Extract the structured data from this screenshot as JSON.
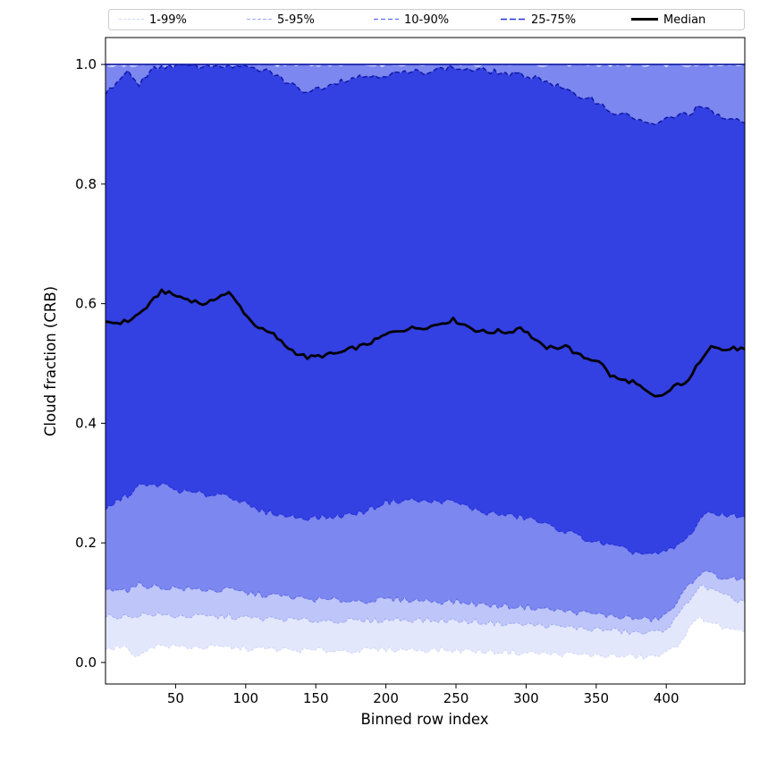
{
  "figure": {
    "background": "#ffffff"
  },
  "chart_data": {
    "type": "area",
    "title": "",
    "xlabel": "Binned row index",
    "ylabel": "Cloud fraction (CRB)",
    "xlim": [
      0,
      456
    ],
    "ylim": [
      -0.036,
      1.045
    ],
    "grid": false,
    "xticks": [
      {
        "v": 50,
        "label": "50"
      },
      {
        "v": 100,
        "label": "100"
      },
      {
        "v": 150,
        "label": "150"
      },
      {
        "v": 200,
        "label": "200"
      },
      {
        "v": 250,
        "label": "250"
      },
      {
        "v": 300,
        "label": "300"
      },
      {
        "v": 350,
        "label": "350"
      },
      {
        "v": 400,
        "label": "400"
      }
    ],
    "yticks": [
      {
        "v": 0.0,
        "label": "0.0"
      },
      {
        "v": 0.2,
        "label": "0.2"
      },
      {
        "v": 0.4,
        "label": "0.4"
      },
      {
        "v": 0.6,
        "label": "0.6"
      },
      {
        "v": 0.8,
        "label": "0.8"
      },
      {
        "v": 1.0,
        "label": "1.0"
      }
    ],
    "legend": {
      "position": "top",
      "entries": [
        {
          "label": "1-99%",
          "color": "#d2d8fa",
          "style": "dashed",
          "width": 1
        },
        {
          "label": "5-95%",
          "color": "#9ea9f4",
          "style": "dashed",
          "width": 1
        },
        {
          "label": "10-90%",
          "color": "#5f6cea",
          "style": "dashed",
          "width": 1.2
        },
        {
          "label": "25-75%",
          "color": "#2430d6",
          "style": "dashed",
          "width": 1.6
        },
        {
          "label": "Median",
          "color": "#000000",
          "style": "solid",
          "width": 3
        }
      ]
    },
    "x": [
      0,
      8,
      16,
      24,
      32,
      40,
      48,
      56,
      64,
      72,
      80,
      88,
      96,
      104,
      112,
      120,
      128,
      136,
      144,
      152,
      160,
      168,
      176,
      184,
      192,
      200,
      208,
      216,
      224,
      232,
      240,
      248,
      256,
      264,
      272,
      280,
      288,
      296,
      304,
      312,
      320,
      328,
      336,
      344,
      352,
      360,
      368,
      376,
      384,
      392,
      400,
      408,
      416,
      424,
      432,
      440,
      448,
      456
    ],
    "series": [
      {
        "name": "p1",
        "values": [
          0.022,
          0.025,
          0.024,
          0.008,
          0.028,
          0.028,
          0.027,
          0.026,
          0.026,
          0.025,
          0.025,
          0.025,
          0.024,
          0.023,
          0.022,
          0.022,
          0.021,
          0.02,
          0.02,
          0.02,
          0.02,
          0.02,
          0.02,
          0.02,
          0.021,
          0.022,
          0.022,
          0.022,
          0.021,
          0.021,
          0.021,
          0.02,
          0.02,
          0.019,
          0.018,
          0.018,
          0.017,
          0.016,
          0.016,
          0.015,
          0.014,
          0.014,
          0.013,
          0.012,
          0.012,
          0.011,
          0.01,
          0.01,
          0.009,
          0.01,
          0.015,
          0.03,
          0.055,
          0.075,
          0.068,
          0.058,
          0.052,
          0.05
        ]
      },
      {
        "name": "p5",
        "values": [
          0.075,
          0.078,
          0.076,
          0.08,
          0.08,
          0.079,
          0.078,
          0.078,
          0.077,
          0.077,
          0.076,
          0.077,
          0.075,
          0.074,
          0.073,
          0.073,
          0.072,
          0.071,
          0.07,
          0.07,
          0.07,
          0.07,
          0.069,
          0.069,
          0.07,
          0.071,
          0.072,
          0.072,
          0.071,
          0.07,
          0.07,
          0.07,
          0.069,
          0.068,
          0.067,
          0.066,
          0.065,
          0.064,
          0.063,
          0.062,
          0.06,
          0.059,
          0.058,
          0.056,
          0.055,
          0.054,
          0.052,
          0.05,
          0.049,
          0.05,
          0.058,
          0.075,
          0.105,
          0.128,
          0.122,
          0.112,
          0.105,
          0.102
        ]
      },
      {
        "name": "p10",
        "values": [
          0.122,
          0.125,
          0.12,
          0.13,
          0.128,
          0.125,
          0.125,
          0.123,
          0.122,
          0.122,
          0.12,
          0.122,
          0.118,
          0.115,
          0.113,
          0.112,
          0.11,
          0.108,
          0.106,
          0.105,
          0.104,
          0.104,
          0.103,
          0.103,
          0.104,
          0.105,
          0.105,
          0.105,
          0.104,
          0.103,
          0.102,
          0.102,
          0.1,
          0.098,
          0.096,
          0.095,
          0.094,
          0.093,
          0.092,
          0.09,
          0.088,
          0.086,
          0.084,
          0.082,
          0.08,
          0.078,
          0.076,
          0.074,
          0.072,
          0.072,
          0.08,
          0.1,
          0.13,
          0.15,
          0.148,
          0.142,
          0.14,
          0.138
        ]
      },
      {
        "name": "p25",
        "values": [
          0.255,
          0.27,
          0.28,
          0.295,
          0.295,
          0.298,
          0.29,
          0.285,
          0.283,
          0.28,
          0.282,
          0.28,
          0.27,
          0.258,
          0.252,
          0.25,
          0.245,
          0.243,
          0.242,
          0.242,
          0.243,
          0.245,
          0.248,
          0.252,
          0.26,
          0.268,
          0.27,
          0.272,
          0.27,
          0.268,
          0.27,
          0.268,
          0.262,
          0.255,
          0.25,
          0.248,
          0.245,
          0.243,
          0.24,
          0.232,
          0.225,
          0.22,
          0.212,
          0.205,
          0.2,
          0.195,
          0.19,
          0.185,
          0.182,
          0.18,
          0.185,
          0.195,
          0.21,
          0.24,
          0.25,
          0.248,
          0.245,
          0.243
        ]
      },
      {
        "name": "median",
        "values": [
          0.57,
          0.568,
          0.571,
          0.583,
          0.6,
          0.622,
          0.615,
          0.609,
          0.604,
          0.598,
          0.612,
          0.618,
          0.595,
          0.57,
          0.556,
          0.548,
          0.53,
          0.518,
          0.51,
          0.512,
          0.515,
          0.518,
          0.525,
          0.53,
          0.538,
          0.548,
          0.555,
          0.558,
          0.56,
          0.562,
          0.568,
          0.573,
          0.565,
          0.556,
          0.552,
          0.554,
          0.552,
          0.561,
          0.545,
          0.528,
          0.525,
          0.531,
          0.515,
          0.508,
          0.505,
          0.48,
          0.472,
          0.47,
          0.455,
          0.443,
          0.45,
          0.465,
          0.47,
          0.505,
          0.532,
          0.522,
          0.525,
          0.524
        ]
      },
      {
        "name": "p75",
        "values": [
          0.95,
          0.972,
          0.985,
          0.968,
          0.99,
          0.997,
          0.998,
          0.997,
          0.998,
          0.998,
          0.999,
          0.998,
          0.996,
          0.993,
          0.99,
          0.985,
          0.972,
          0.962,
          0.955,
          0.96,
          0.968,
          0.973,
          0.978,
          0.98,
          0.982,
          0.983,
          0.985,
          0.986,
          0.988,
          0.99,
          0.993,
          0.995,
          0.992,
          0.99,
          0.99,
          0.987,
          0.983,
          0.982,
          0.98,
          0.975,
          0.966,
          0.958,
          0.945,
          0.947,
          0.935,
          0.922,
          0.916,
          0.912,
          0.905,
          0.896,
          0.91,
          0.914,
          0.918,
          0.93,
          0.92,
          0.912,
          0.906,
          0.902
        ]
      },
      {
        "name": "p90",
        "values": [
          1.0,
          1.0,
          1.0,
          1.0,
          1.0,
          1.0,
          1.0,
          1.0,
          1.0,
          1.0,
          1.0,
          1.0,
          1.0,
          1.0,
          1.0,
          1.0,
          1.0,
          1.0,
          1.0,
          1.0,
          1.0,
          1.0,
          1.0,
          1.0,
          1.0,
          1.0,
          1.0,
          1.0,
          1.0,
          1.0,
          1.0,
          1.0,
          1.0,
          1.0,
          1.0,
          1.0,
          1.0,
          1.0,
          1.0,
          1.0,
          1.0,
          1.0,
          1.0,
          1.0,
          1.0,
          1.0,
          1.0,
          1.0,
          1.0,
          1.0,
          1.0,
          1.0,
          1.0,
          1.0,
          1.0,
          1.0,
          1.0,
          1.0
        ]
      },
      {
        "name": "p95",
        "values": [
          1.0,
          1.0,
          1.0,
          1.0,
          1.0,
          1.0,
          1.0,
          1.0,
          1.0,
          1.0,
          1.0,
          1.0,
          1.0,
          1.0,
          1.0,
          1.0,
          1.0,
          1.0,
          1.0,
          1.0,
          1.0,
          1.0,
          1.0,
          1.0,
          1.0,
          1.0,
          1.0,
          1.0,
          1.0,
          1.0,
          1.0,
          1.0,
          1.0,
          1.0,
          1.0,
          1.0,
          1.0,
          1.0,
          1.0,
          1.0,
          1.0,
          1.0,
          1.0,
          1.0,
          1.0,
          1.0,
          1.0,
          1.0,
          1.0,
          1.0,
          1.0,
          1.0,
          1.0,
          1.0,
          1.0,
          1.0,
          1.0,
          1.0
        ]
      },
      {
        "name": "p99",
        "values": [
          1.0,
          1.0,
          1.0,
          1.0,
          1.0,
          1.0,
          1.0,
          1.0,
          1.0,
          1.0,
          1.0,
          1.0,
          1.0,
          1.0,
          1.0,
          1.0,
          1.0,
          1.0,
          1.0,
          1.0,
          1.0,
          1.0,
          1.0,
          1.0,
          1.0,
          1.0,
          1.0,
          1.0,
          1.0,
          1.0,
          1.0,
          1.0,
          1.0,
          1.0,
          1.0,
          1.0,
          1.0,
          1.0,
          1.0,
          1.0,
          1.0,
          1.0,
          1.0,
          1.0,
          1.0,
          1.0,
          1.0,
          1.0,
          1.0,
          1.0,
          1.0,
          1.0,
          1.0,
          1.0,
          1.0,
          1.0,
          1.0,
          1.0
        ]
      }
    ],
    "bands": [
      {
        "lower": "p1",
        "upper": "p99",
        "label": "1-99%",
        "color": "#e3e7fc"
      },
      {
        "lower": "p5",
        "upper": "p95",
        "label": "5-95%",
        "color": "#bec5f8"
      },
      {
        "lower": "p10",
        "upper": "p90",
        "label": "10-90%",
        "color": "#7c87ef"
      },
      {
        "lower": "p25",
        "upper": "p75",
        "label": "25-75%",
        "color": "#3340e2"
      }
    ],
    "edges": [
      {
        "series": "p1",
        "color": "#d2d8fa",
        "width": 1,
        "dash": "3 2",
        "amp": 0.005
      },
      {
        "series": "p5",
        "color": "#9ea9f4",
        "width": 1,
        "dash": "3 2",
        "amp": 0.005
      },
      {
        "series": "p10",
        "color": "#5f6cea",
        "width": 1,
        "dash": "4 2",
        "amp": 0.005
      },
      {
        "series": "p25",
        "color": "#2430d6",
        "width": 1,
        "dash": "4 2",
        "amp": 0.005
      },
      {
        "series": "p75",
        "color": "#0a14a0",
        "width": 1.4,
        "dash": "5 3",
        "amp": 0.005
      },
      {
        "series": "p90",
        "color": "#0a14a0",
        "width": 1.6,
        "dash": "",
        "amp": 0
      }
    ],
    "median_color": "#000000"
  }
}
